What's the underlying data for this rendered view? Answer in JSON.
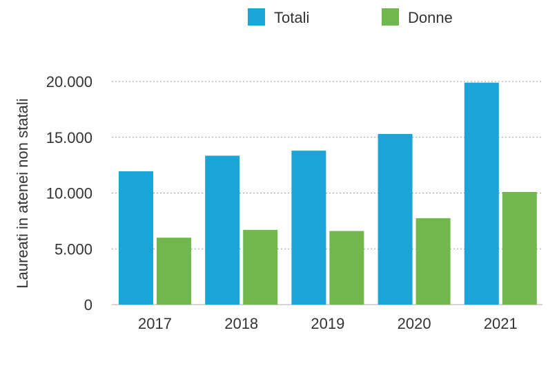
{
  "chart_data": {
    "type": "bar",
    "title": "",
    "xlabel": "",
    "ylabel": "Laureati in atenei non statali",
    "categories": [
      "2017",
      "2018",
      "2019",
      "2020",
      "2021"
    ],
    "series": [
      {
        "name": "Totali",
        "color": "#1ba4d8",
        "values": [
          11950,
          13350,
          13800,
          15300,
          19900
        ]
      },
      {
        "name": "Donne",
        "color": "#70b84c",
        "values": [
          6000,
          6700,
          6600,
          7750,
          10100
        ]
      }
    ],
    "ylim": [
      0,
      20000
    ],
    "yticks": [
      0,
      5000,
      10000,
      15000,
      20000
    ],
    "ytick_labels": [
      "0",
      "5.000",
      "10.000",
      "15.000",
      "20.000"
    ],
    "grid": true,
    "legend_position": "top"
  }
}
